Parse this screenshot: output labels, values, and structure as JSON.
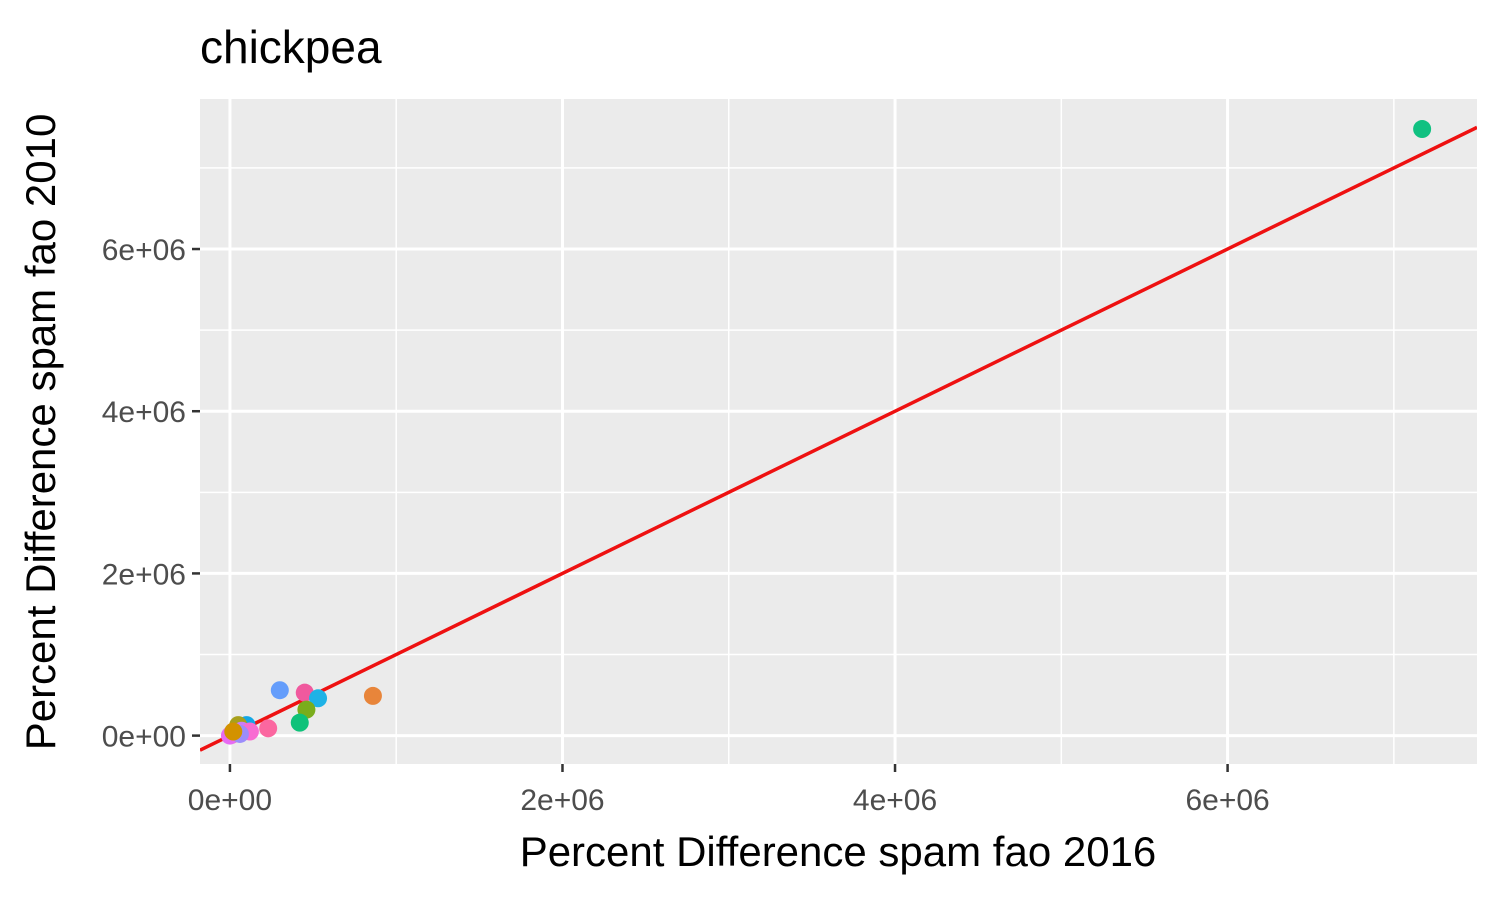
{
  "chart_data": {
    "type": "scatter",
    "title": "chickpea",
    "xlabel": "Percent Difference spam fao 2016",
    "ylabel": "Percent Difference spam fao 2010",
    "xlim": [
      -180000,
      7500000
    ],
    "ylim": [
      -350000,
      7850000
    ],
    "x_ticks": [
      {
        "value": 0,
        "label": "0e+00"
      },
      {
        "value": 2000000,
        "label": "2e+06"
      },
      {
        "value": 4000000,
        "label": "4e+06"
      },
      {
        "value": 6000000,
        "label": "6e+06"
      }
    ],
    "y_ticks": [
      {
        "value": 0,
        "label": "0e+00"
      },
      {
        "value": 2000000,
        "label": "2e+06"
      },
      {
        "value": 4000000,
        "label": "4e+06"
      },
      {
        "value": 6000000,
        "label": "6e+06"
      }
    ],
    "x_minor": [
      1000000,
      3000000,
      5000000,
      7000000
    ],
    "y_minor": [
      1000000,
      3000000,
      5000000,
      7000000
    ],
    "grid": true,
    "reference_line": {
      "slope": 1,
      "intercept": 0,
      "color": "#ee1111"
    },
    "points": [
      {
        "x": 7170000,
        "y": 7480000,
        "color": "#10c181"
      },
      {
        "x": 860000,
        "y": 490000,
        "color": "#e8853a"
      },
      {
        "x": 300000,
        "y": 560000,
        "color": "#649dfb"
      },
      {
        "x": 450000,
        "y": 530000,
        "color": "#f0599e"
      },
      {
        "x": 530000,
        "y": 460000,
        "color": "#1eb2e6"
      },
      {
        "x": 460000,
        "y": 320000,
        "color": "#7aad1c"
      },
      {
        "x": 420000,
        "y": 160000,
        "color": "#0ec27a"
      },
      {
        "x": 230000,
        "y": 90000,
        "color": "#fb67a0"
      },
      {
        "x": 100000,
        "y": 130000,
        "color": "#12a7e6"
      },
      {
        "x": 50000,
        "y": 130000,
        "color": "#a8a01d"
      },
      {
        "x": 70000,
        "y": 60000,
        "color": "#c97ef9"
      },
      {
        "x": 120000,
        "y": 50000,
        "color": "#f86cd2"
      },
      {
        "x": 30000,
        "y": 30000,
        "color": "#35b779"
      },
      {
        "x": 10000,
        "y": 10000,
        "color": "#f8766d"
      },
      {
        "x": 0,
        "y": 0,
        "color": "#e76bf3"
      },
      {
        "x": 60000,
        "y": 20000,
        "color": "#9c8dfb"
      },
      {
        "x": 20000,
        "y": 50000,
        "color": "#d39200"
      }
    ]
  }
}
